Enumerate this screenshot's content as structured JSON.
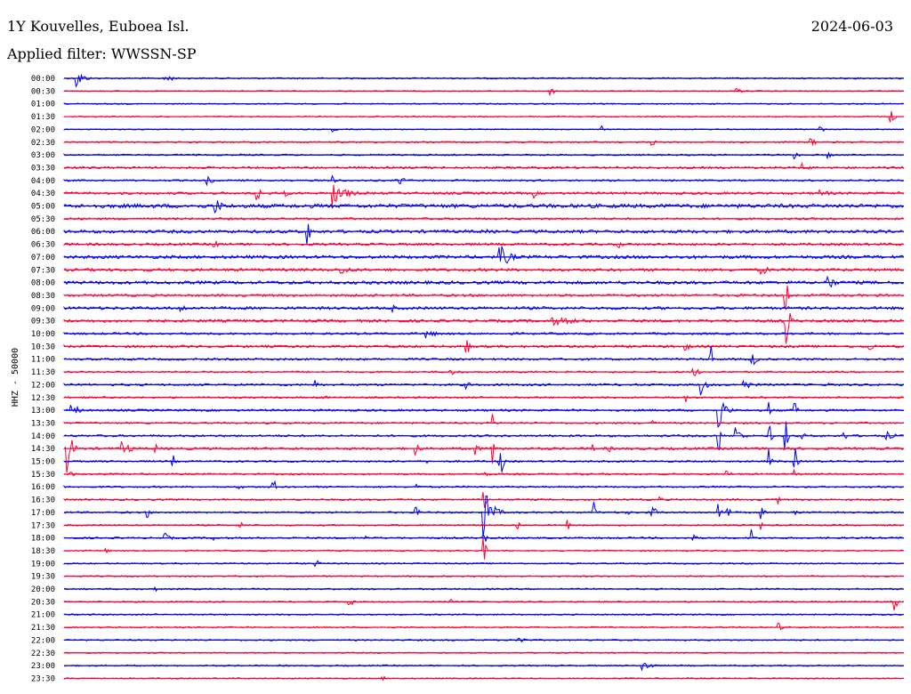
{
  "header": {
    "station": "1Y Kouvelles, Euboea Isl.",
    "date": "2024-06-03",
    "filter": "Applied filter: WWSSN-SP"
  },
  "colors": {
    "odd_trace": "#0000ee",
    "even_trace": "#ff0033",
    "background": "#ffffff"
  },
  "chart_data": {
    "type": "line",
    "title": "1Y Kouvelles, Euboea Isl.",
    "subtitle": "Applied filter: WWSSN-SP",
    "xlabel": "",
    "ylabel": "HHZ - 50000",
    "traces": [
      {
        "label": "00:00",
        "color": "blue",
        "noise": 0.8,
        "events": [
          [
            0.015,
            14,
            6
          ],
          [
            0.12,
            12,
            5
          ]
        ]
      },
      {
        "label": "00:30",
        "color": "red",
        "noise": 0.6,
        "events": [
          [
            0.58,
            5,
            4
          ],
          [
            0.8,
            4,
            8
          ]
        ]
      },
      {
        "label": "01:00",
        "color": "blue",
        "noise": 0.7,
        "events": []
      },
      {
        "label": "01:30",
        "color": "red",
        "noise": 0.7,
        "events": [
          [
            0.985,
            8,
            4
          ]
        ]
      },
      {
        "label": "02:00",
        "color": "blue",
        "noise": 0.6,
        "events": [
          [
            0.32,
            3,
            4
          ],
          [
            0.64,
            5,
            3
          ],
          [
            0.9,
            4,
            5
          ]
        ]
      },
      {
        "label": "02:30",
        "color": "red",
        "noise": 0.9,
        "events": [
          [
            0.7,
            4,
            6
          ],
          [
            0.89,
            6,
            4
          ]
        ]
      },
      {
        "label": "03:00",
        "color": "blue",
        "noise": 0.9,
        "events": [
          [
            0.87,
            5,
            6
          ],
          [
            0.91,
            4,
            5
          ]
        ]
      },
      {
        "label": "03:30",
        "color": "red",
        "noise": 1.2,
        "events": [
          [
            0.88,
            9,
            5
          ]
        ]
      },
      {
        "label": "04:00",
        "color": "blue",
        "noise": 1.0,
        "events": [
          [
            0.17,
            5,
            8
          ],
          [
            0.32,
            10,
            4
          ],
          [
            0.4,
            7,
            5
          ]
        ]
      },
      {
        "label": "04:30",
        "color": "red",
        "noise": 1.4,
        "events": [
          [
            0.23,
            34,
            2
          ],
          [
            0.26,
            9,
            4
          ],
          [
            0.32,
            14,
            14
          ],
          [
            0.56,
            6,
            3
          ],
          [
            0.9,
            5,
            12
          ]
        ]
      },
      {
        "label": "05:00",
        "color": "blue",
        "noise": 2.2,
        "events": [
          [
            0.18,
            10,
            8
          ]
        ]
      },
      {
        "label": "05:30",
        "color": "red",
        "noise": 1.2,
        "events": []
      },
      {
        "label": "06:00",
        "color": "blue",
        "noise": 1.8,
        "events": [
          [
            0.29,
            18,
            3
          ],
          [
            0.5,
            4,
            6
          ]
        ]
      },
      {
        "label": "06:30",
        "color": "red",
        "noise": 1.4,
        "events": [
          [
            0.18,
            5,
            4
          ],
          [
            0.66,
            5,
            6
          ]
        ]
      },
      {
        "label": "07:00",
        "color": "blue",
        "noise": 1.8,
        "events": [
          [
            0.52,
            14,
            10
          ]
        ]
      },
      {
        "label": "07:30",
        "color": "red",
        "noise": 1.6,
        "events": [
          [
            0.33,
            6,
            14
          ],
          [
            0.83,
            6,
            10
          ]
        ]
      },
      {
        "label": "08:00",
        "color": "blue",
        "noise": 1.8,
        "events": [
          [
            0.91,
            14,
            5
          ]
        ]
      },
      {
        "label": "08:30",
        "color": "red",
        "noise": 1.4,
        "events": [
          [
            0.86,
            22,
            2
          ]
        ]
      },
      {
        "label": "09:00",
        "color": "blue",
        "noise": 1.6,
        "events": [
          [
            0.14,
            5,
            6
          ],
          [
            0.39,
            5,
            6
          ]
        ]
      },
      {
        "label": "09:30",
        "color": "red",
        "noise": 1.6,
        "events": [
          [
            0.58,
            5,
            40
          ],
          [
            0.86,
            36,
            3
          ]
        ]
      },
      {
        "label": "10:00",
        "color": "blue",
        "noise": 1.2,
        "events": [
          [
            0.43,
            6,
            12
          ]
        ]
      },
      {
        "label": "10:30",
        "color": "red",
        "noise": 1.4,
        "events": [
          [
            0.48,
            10,
            3
          ],
          [
            0.74,
            10,
            3
          ],
          [
            0.96,
            5,
            6
          ]
        ]
      },
      {
        "label": "11:00",
        "color": "blue",
        "noise": 1.2,
        "events": [
          [
            0.77,
            40,
            1
          ],
          [
            0.82,
            10,
            4
          ]
        ]
      },
      {
        "label": "11:30",
        "color": "red",
        "noise": 1.0,
        "events": [
          [
            0.46,
            4,
            10
          ],
          [
            0.75,
            6,
            6
          ]
        ]
      },
      {
        "label": "12:00",
        "color": "blue",
        "noise": 1.2,
        "events": [
          [
            0.3,
            8,
            3
          ],
          [
            0.48,
            5,
            3
          ],
          [
            0.76,
            20,
            3
          ],
          [
            0.81,
            6,
            10
          ],
          [
            0.91,
            5,
            3
          ]
        ]
      },
      {
        "label": "12:30",
        "color": "red",
        "noise": 1.0,
        "events": [
          [
            0.31,
            5,
            3
          ],
          [
            0.74,
            12,
            2
          ]
        ]
      },
      {
        "label": "13:00",
        "color": "blue",
        "noise": 1.2,
        "events": [
          [
            0.01,
            10,
            6
          ],
          [
            0.78,
            24,
            6
          ],
          [
            0.84,
            12,
            2
          ],
          [
            0.87,
            16,
            2
          ]
        ]
      },
      {
        "label": "13:30",
        "color": "red",
        "noise": 1.0,
        "events": [
          [
            0.51,
            14,
            2
          ],
          [
            0.7,
            6,
            4
          ]
        ]
      },
      {
        "label": "14:00",
        "color": "blue",
        "noise": 1.2,
        "events": [
          [
            0.78,
            20,
            2
          ],
          [
            0.8,
            12,
            6
          ],
          [
            0.84,
            16,
            2
          ],
          [
            0.86,
            18,
            2
          ],
          [
            0.88,
            6,
            2
          ],
          [
            0.93,
            6,
            2
          ],
          [
            0.98,
            5,
            10
          ]
        ]
      },
      {
        "label": "14:30",
        "color": "red",
        "noise": 1.4,
        "events": [
          [
            0.005,
            30,
            4
          ],
          [
            0.07,
            8,
            10
          ],
          [
            0.11,
            5,
            2
          ],
          [
            0.42,
            8,
            3
          ],
          [
            0.49,
            12,
            3
          ],
          [
            0.51,
            18,
            3
          ],
          [
            0.63,
            5,
            3
          ],
          [
            0.65,
            4,
            3
          ],
          [
            0.7,
            5,
            3
          ]
        ]
      },
      {
        "label": "15:00",
        "color": "blue",
        "noise": 1.0,
        "events": [
          [
            0.13,
            8,
            2
          ],
          [
            0.43,
            6,
            2
          ],
          [
            0.52,
            24,
            2
          ],
          [
            0.84,
            16,
            2
          ],
          [
            0.87,
            24,
            2
          ]
        ]
      },
      {
        "label": "15:30",
        "color": "red",
        "noise": 1.0,
        "events": [
          [
            0.01,
            4,
            3
          ],
          [
            0.5,
            4,
            6
          ],
          [
            0.79,
            4,
            6
          ],
          [
            0.87,
            6,
            2
          ]
        ]
      },
      {
        "label": "16:00",
        "color": "blue",
        "noise": 1.0,
        "events": [
          [
            0.21,
            4,
            3
          ],
          [
            0.25,
            10,
            2
          ],
          [
            0.42,
            4,
            3
          ]
        ]
      },
      {
        "label": "16:30",
        "color": "red",
        "noise": 1.0,
        "events": [
          [
            0.5,
            18,
            2
          ],
          [
            0.71,
            4,
            4
          ],
          [
            0.85,
            6,
            2
          ]
        ]
      },
      {
        "label": "17:00",
        "color": "blue",
        "noise": 1.0,
        "events": [
          [
            0.1,
            6,
            3
          ],
          [
            0.42,
            6,
            3
          ],
          [
            0.5,
            30,
            8
          ],
          [
            0.63,
            16,
            3
          ],
          [
            0.67,
            4,
            4
          ],
          [
            0.7,
            8,
            6
          ],
          [
            0.78,
            20,
            2
          ],
          [
            0.79,
            8,
            3
          ],
          [
            0.83,
            8,
            3
          ],
          [
            0.87,
            6,
            4
          ]
        ]
      },
      {
        "label": "17:30",
        "color": "red",
        "noise": 0.9,
        "events": [
          [
            0.21,
            4,
            6
          ],
          [
            0.54,
            8,
            2
          ],
          [
            0.6,
            6,
            2
          ],
          [
            0.83,
            6,
            2
          ]
        ]
      },
      {
        "label": "18:00",
        "color": "blue",
        "noise": 1.0,
        "events": [
          [
            0.12,
            6,
            6
          ],
          [
            0.18,
            5,
            2
          ],
          [
            0.36,
            6,
            2
          ],
          [
            0.5,
            14,
            2
          ],
          [
            0.75,
            8,
            2
          ],
          [
            0.82,
            14,
            2
          ]
        ]
      },
      {
        "label": "18:30",
        "color": "red",
        "noise": 0.8,
        "events": [
          [
            0.05,
            4,
            3
          ],
          [
            0.5,
            16,
            2
          ]
        ]
      },
      {
        "label": "19:00",
        "color": "blue",
        "noise": 0.8,
        "events": [
          [
            0.3,
            6,
            3
          ]
        ]
      },
      {
        "label": "19:30",
        "color": "red",
        "noise": 0.8,
        "events": []
      },
      {
        "label": "20:00",
        "color": "blue",
        "noise": 0.9,
        "events": [
          [
            0.11,
            3,
            4
          ]
        ]
      },
      {
        "label": "20:30",
        "color": "red",
        "noise": 0.8,
        "events": [
          [
            0.34,
            5,
            6
          ],
          [
            0.46,
            6,
            2
          ],
          [
            0.99,
            10,
            2
          ]
        ]
      },
      {
        "label": "21:00",
        "color": "blue",
        "noise": 0.8,
        "events": []
      },
      {
        "label": "21:30",
        "color": "red",
        "noise": 0.8,
        "events": [
          [
            0.85,
            8,
            3
          ]
        ]
      },
      {
        "label": "22:00",
        "color": "blue",
        "noise": 0.8,
        "events": [
          [
            0.54,
            8,
            6
          ]
        ]
      },
      {
        "label": "22:30",
        "color": "red",
        "noise": 0.7,
        "events": []
      },
      {
        "label": "23:00",
        "color": "blue",
        "noise": 0.8,
        "events": [
          [
            0.69,
            8,
            8
          ]
        ]
      },
      {
        "label": "23:30",
        "color": "red",
        "noise": 0.7,
        "events": [
          [
            0.38,
            4,
            2
          ]
        ]
      }
    ]
  }
}
